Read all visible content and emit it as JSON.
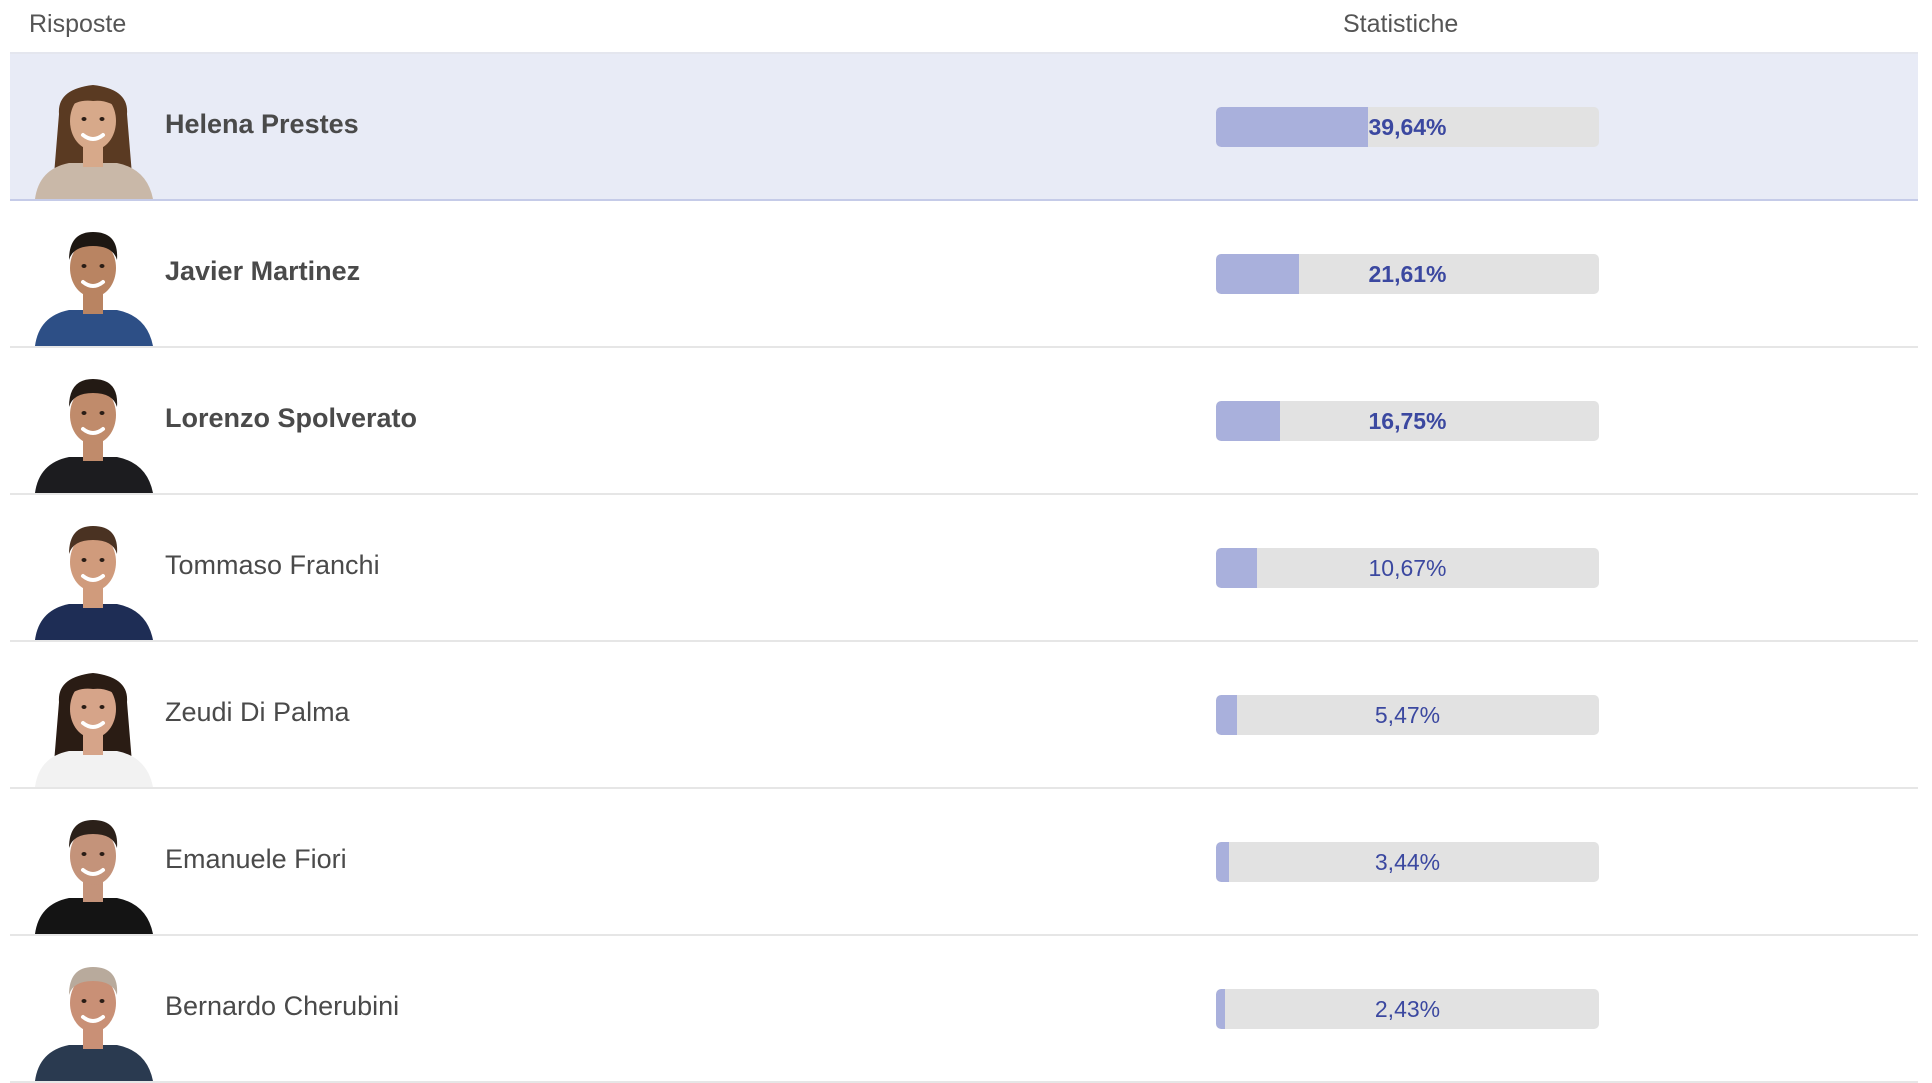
{
  "header": {
    "answers_label": "Risposte",
    "stats_label": "Statistiche"
  },
  "colors": {
    "bar_fill": "#a9b0dc",
    "bar_track": "#e2e2e2",
    "percent_text": "#3b48a0",
    "highlight_row": "#e8ebf6"
  },
  "rows": [
    {
      "name": "Helena Prestes",
      "percent_label": "39,64%",
      "percent": 39.64,
      "bold": true,
      "highlight": true,
      "avatar": {
        "gender": "f",
        "hair": "#5a3a22",
        "skin": "#d7a98a",
        "shirt": "#c9b8a8"
      }
    },
    {
      "name": "Javier Martinez",
      "percent_label": "21,61%",
      "percent": 21.61,
      "bold": true,
      "highlight": false,
      "avatar": {
        "gender": "m",
        "hair": "#1d1712",
        "skin": "#b98462",
        "shirt": "#2d4f86"
      }
    },
    {
      "name": "Lorenzo Spolverato",
      "percent_label": "16,75%",
      "percent": 16.75,
      "bold": true,
      "highlight": false,
      "avatar": {
        "gender": "m",
        "hair": "#231a14",
        "skin": "#c08b6b",
        "shirt": "#1c1c1f"
      }
    },
    {
      "name": "Tommaso Franchi",
      "percent_label": "10,67%",
      "percent": 10.67,
      "bold": false,
      "highlight": false,
      "avatar": {
        "gender": "m",
        "hair": "#4a3222",
        "skin": "#d09b7c",
        "shirt": "#1e2d55"
      }
    },
    {
      "name": "Zeudi Di Palma",
      "percent_label": "5,47%",
      "percent": 5.47,
      "bold": false,
      "highlight": false,
      "avatar": {
        "gender": "f",
        "hair": "#2a1c14",
        "skin": "#d6a489",
        "shirt": "#f2f2f2"
      }
    },
    {
      "name": "Emanuele Fiori",
      "percent_label": "3,44%",
      "percent": 3.44,
      "bold": false,
      "highlight": false,
      "avatar": {
        "gender": "m",
        "hair": "#2b2019",
        "skin": "#c4937a",
        "shirt": "#141414"
      }
    },
    {
      "name": "Bernardo Cherubini",
      "percent_label": "2,43%",
      "percent": 2.43,
      "bold": false,
      "highlight": false,
      "avatar": {
        "gender": "m",
        "hair": "#b8aa9c",
        "skin": "#c99076",
        "shirt": "#2a3a50"
      }
    }
  ]
}
